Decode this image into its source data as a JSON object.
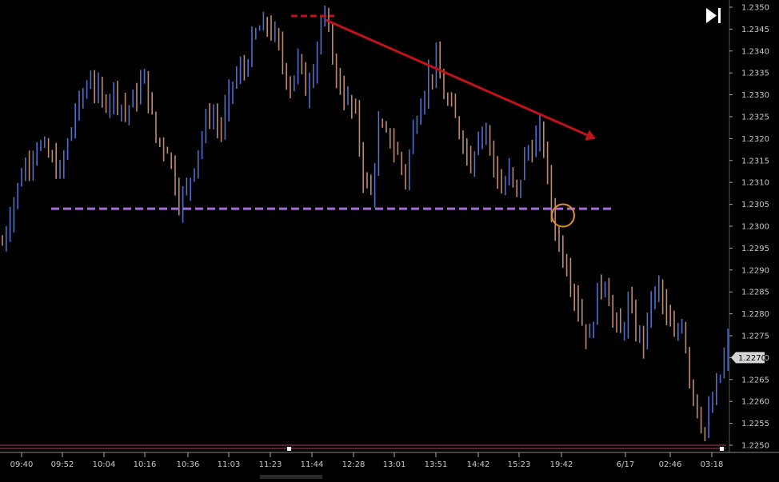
{
  "colors": {
    "background": "#000000",
    "up_bar": "#4f6fd0",
    "down_bar": "#c08a6a",
    "trend_arrow": "#c0121a",
    "top_marker": "#c0121a",
    "support_line": "#a66ed6",
    "breakout_circle": "#e0902a",
    "axis_text": "#c8c8c8",
    "last_price_box": "#d4d4d4",
    "separator_line": "#b03a5a"
  },
  "toolbar": {
    "jump_to_end_icon": "skip-to-end-icon"
  },
  "last_price_label": "1.2270",
  "chart_data": {
    "type": "ohlc-bar",
    "y_axis": {
      "ticks": [
        "1.2350",
        "1.2345",
        "1.2340",
        "1.2335",
        "1.2330",
        "1.2325",
        "1.2320",
        "1.2315",
        "1.2310",
        "1.2305",
        "1.2300",
        "1.2295",
        "1.2290",
        "1.2285",
        "1.2280",
        "1.2275",
        "1.2270",
        "1.2265",
        "1.2260",
        "1.2255",
        "1.2250"
      ],
      "ylim": [
        1.225,
        1.235
      ]
    },
    "x_axis": {
      "ticks": [
        "09:40",
        "09:52",
        "10:04",
        "10:16",
        "10:36",
        "11:03",
        "11:23",
        "11:44",
        "12:28",
        "13:01",
        "13:51",
        "14:42",
        "15:23",
        "19:42",
        "6/17",
        "02:46",
        "03:18"
      ]
    },
    "price_path": [
      [
        0,
        1.2296
      ],
      [
        2,
        1.2303
      ],
      [
        5,
        1.2312
      ],
      [
        9,
        1.2319
      ],
      [
        12,
        1.2316
      ],
      [
        15,
        1.2312
      ],
      [
        19,
        1.2326
      ],
      [
        23,
        1.2334
      ],
      [
        26,
        1.2328
      ],
      [
        29,
        1.2331
      ],
      [
        32,
        1.2326
      ],
      [
        35,
        1.233
      ],
      [
        37,
        1.2334
      ],
      [
        40,
        1.232
      ],
      [
        43,
        1.2318
      ],
      [
        46,
        1.2306
      ],
      [
        48,
        1.2308
      ],
      [
        51,
        1.2318
      ],
      [
        54,
        1.2326
      ],
      [
        57,
        1.2322
      ],
      [
        60,
        1.2333
      ],
      [
        63,
        1.2336
      ],
      [
        66,
        1.2344
      ],
      [
        69,
        1.2346
      ],
      [
        71,
        1.2343
      ],
      [
        73,
        1.2337
      ],
      [
        75,
        1.2332
      ],
      [
        77,
        1.2338
      ],
      [
        79,
        1.2331
      ],
      [
        81,
        1.2337
      ],
      [
        83,
        1.2347
      ],
      [
        85,
        1.2344
      ],
      [
        87,
        1.2334
      ],
      [
        89,
        1.233
      ],
      [
        92,
        1.2325
      ],
      [
        94,
        1.2312
      ],
      [
        96,
        1.2307
      ],
      [
        98,
        1.2322
      ],
      [
        101,
        1.232
      ],
      [
        103,
        1.2316
      ],
      [
        105,
        1.2311
      ],
      [
        107,
        1.2322
      ],
      [
        109,
        1.2329
      ],
      [
        111,
        1.2334
      ],
      [
        113,
        1.2337
      ],
      [
        115,
        1.233
      ],
      [
        117,
        1.2326
      ],
      [
        120,
        1.232
      ],
      [
        122,
        1.2314
      ],
      [
        124,
        1.2322
      ],
      [
        126,
        1.2322
      ],
      [
        128,
        1.2314
      ],
      [
        130,
        1.2308
      ],
      [
        132,
        1.2312
      ],
      [
        134,
        1.2307
      ],
      [
        136,
        1.2316
      ],
      [
        138,
        1.2318
      ],
      [
        140,
        1.2321
      ],
      [
        141,
        1.2318
      ],
      [
        142,
        1.2311
      ],
      [
        143,
        1.2304
      ],
      [
        145,
        1.2296
      ],
      [
        147,
        1.2291
      ],
      [
        149,
        1.2285
      ],
      [
        151,
        1.2278
      ],
      [
        153,
        1.2274
      ],
      [
        155,
        1.2285
      ],
      [
        157,
        1.2288
      ],
      [
        159,
        1.2279
      ],
      [
        161,
        1.2275
      ],
      [
        163,
        1.2282
      ],
      [
        165,
        1.2276
      ],
      [
        167,
        1.2274
      ],
      [
        169,
        1.2283
      ],
      [
        171,
        1.2286
      ],
      [
        173,
        1.2279
      ],
      [
        175,
        1.2274
      ],
      [
        177,
        1.2279
      ],
      [
        179,
        1.2266
      ],
      [
        181,
        1.2258
      ],
      [
        183,
        1.2253
      ],
      [
        185,
        1.226
      ],
      [
        187,
        1.2266
      ],
      [
        189,
        1.2273
      ]
    ],
    "annotations": {
      "top_level": 1.2348,
      "support_level": 1.2304,
      "trend_start": [
        83,
        1.2348
      ],
      "trend_end": [
        151,
        1.2321
      ],
      "breakout_point": [
        142,
        1.2303
      ]
    },
    "last_price": 1.227,
    "grid": false
  }
}
